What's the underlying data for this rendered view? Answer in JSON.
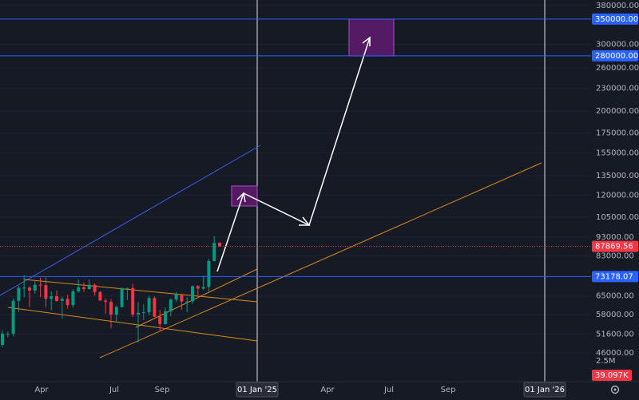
{
  "chart_data": {
    "type": "candlestick",
    "log_scale": true,
    "ylim": [
      40150,
      393000
    ],
    "yticks": [
      {
        "value": 380000,
        "label": "380000.00"
      },
      {
        "value": 300000,
        "label": "300000.00"
      },
      {
        "value": 260000,
        "label": "260000.00"
      },
      {
        "value": 230000,
        "label": "230000.00"
      },
      {
        "value": 200000,
        "label": "200000.00"
      },
      {
        "value": 175000,
        "label": "175000.00"
      },
      {
        "value": 155000,
        "label": "155000.00"
      },
      {
        "value": 135000,
        "label": "135000.00"
      },
      {
        "value": 120000,
        "label": "120000.00"
      },
      {
        "value": 105000,
        "label": "105000.00"
      },
      {
        "value": 93000,
        "label": "93000.00"
      },
      {
        "value": 83000,
        "label": "83000.00"
      },
      {
        "value": 65000,
        "label": "65000.00"
      },
      {
        "value": 58000,
        "label": "58000.00"
      },
      {
        "value": 51600,
        "label": "51600.00"
      },
      {
        "value": 46000,
        "label": "46000.00"
      }
    ],
    "levels": [
      {
        "value": 350000,
        "label": "350000.00",
        "color": "#2962ff"
      },
      {
        "value": 280000,
        "label": "280000.00",
        "color": "#2962ff"
      },
      {
        "value": 73178.07,
        "label": "73178.07",
        "color": "#2962ff"
      }
    ],
    "last_price": {
      "value": 87869.56,
      "label": "87869.56",
      "color": "#f23645"
    },
    "volume_labels": [
      "2.5M",
      "39.097K"
    ],
    "xticks": [
      "Apr",
      "Jul",
      "Sep",
      "01 Jan '25",
      "Apr",
      "Jul",
      "Sep",
      "01 Jan '26"
    ],
    "up_color": "#089981",
    "down_color": "#f23645",
    "series": {
      "open": [
        48300,
        51700,
        51700,
        63100,
        68300,
        68400,
        67200,
        69600,
        69400,
        63900,
        64900,
        63100,
        63900,
        61500,
        66900,
        68500,
        67800,
        69600,
        66600,
        63200,
        62700,
        58000,
        60800,
        68200,
        68200,
        58100,
        58700,
        58900,
        64200,
        57300,
        54800,
        59200,
        63600,
        65600,
        62900,
        62900,
        69000,
        68000,
        68700,
        80400,
        89800
      ],
      "high": [
        52800,
        52400,
        64000,
        69200,
        73800,
        68900,
        71700,
        72700,
        72800,
        66900,
        67200,
        64700,
        65500,
        67700,
        71900,
        70600,
        71900,
        70200,
        66900,
        64000,
        63800,
        61400,
        68400,
        68400,
        70000,
        62700,
        61800,
        65000,
        64900,
        59800,
        60600,
        64100,
        66500,
        66000,
        64500,
        69400,
        69500,
        73600,
        81500,
        93400,
        90200
      ],
      "low": [
        47700,
        50600,
        50900,
        59000,
        64500,
        60800,
        66000,
        64500,
        60700,
        59600,
        62800,
        56600,
        60200,
        60600,
        66300,
        66700,
        67500,
        65100,
        63400,
        58400,
        53500,
        55700,
        60600,
        63400,
        57200,
        49000,
        56100,
        57800,
        57200,
        52500,
        54600,
        57500,
        62700,
        59800,
        58900,
        62000,
        65200,
        67500,
        66800,
        80200,
        87700
      ],
      "close": [
        51700,
        51700,
        63100,
        68300,
        68400,
        67200,
        69600,
        69400,
        63900,
        64900,
        63100,
        63900,
        61500,
        66900,
        68500,
        67800,
        69600,
        66600,
        63200,
        62700,
        58000,
        60800,
        68200,
        68200,
        58100,
        58700,
        58900,
        64200,
        57300,
        54800,
        59200,
        63600,
        65600,
        62900,
        62900,
        69000,
        68000,
        68700,
        80400,
        89800,
        87869.56
      ]
    }
  }
}
